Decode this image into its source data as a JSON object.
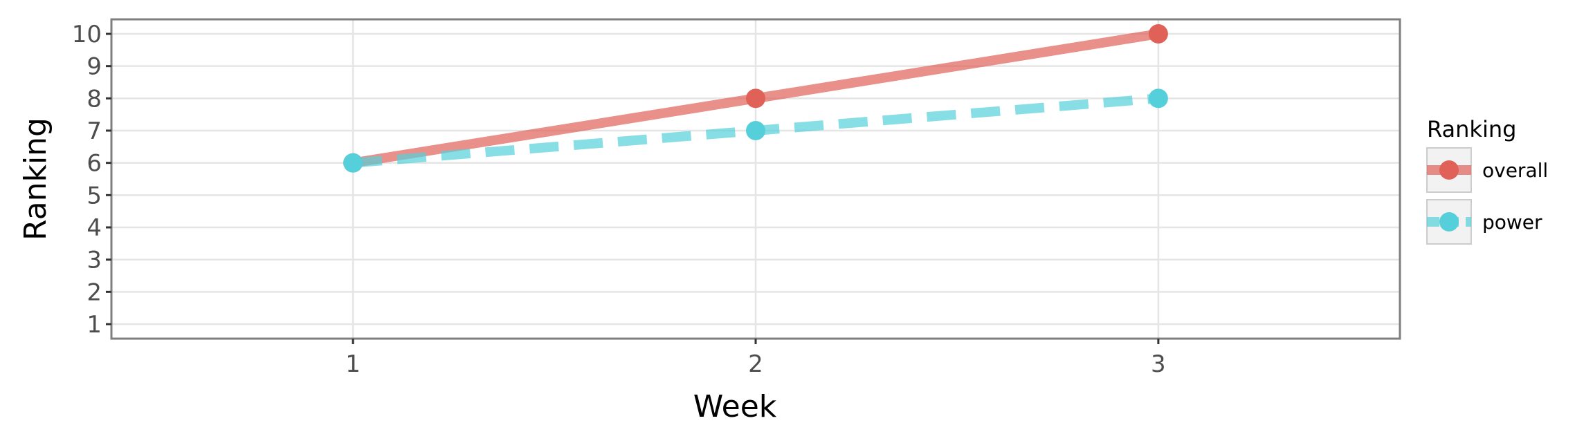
{
  "chart_data": {
    "type": "line",
    "title": "",
    "xlabel": "Week",
    "ylabel": "Ranking",
    "x": [
      1,
      2,
      3
    ],
    "x_ticks": [
      "1",
      "2",
      "3"
    ],
    "y_ticks": [
      "1",
      "2",
      "3",
      "4",
      "5",
      "6",
      "7",
      "8",
      "9",
      "10"
    ],
    "y_tick_values": [
      1,
      2,
      3,
      4,
      5,
      6,
      7,
      8,
      9,
      10
    ],
    "xlim": [
      0.4,
      3.6
    ],
    "ylim": [
      10.45,
      0.55
    ],
    "y_reversed": true,
    "grid": true,
    "legend": {
      "title": "Ranking",
      "position": "right"
    },
    "series": [
      {
        "name": "overall",
        "values": [
          6,
          8,
          10
        ],
        "color": "#e06158",
        "linestyle": "solid"
      },
      {
        "name": "power",
        "values": [
          6,
          7,
          8
        ],
        "color": "#55d0da",
        "linestyle": "dashed"
      }
    ]
  }
}
